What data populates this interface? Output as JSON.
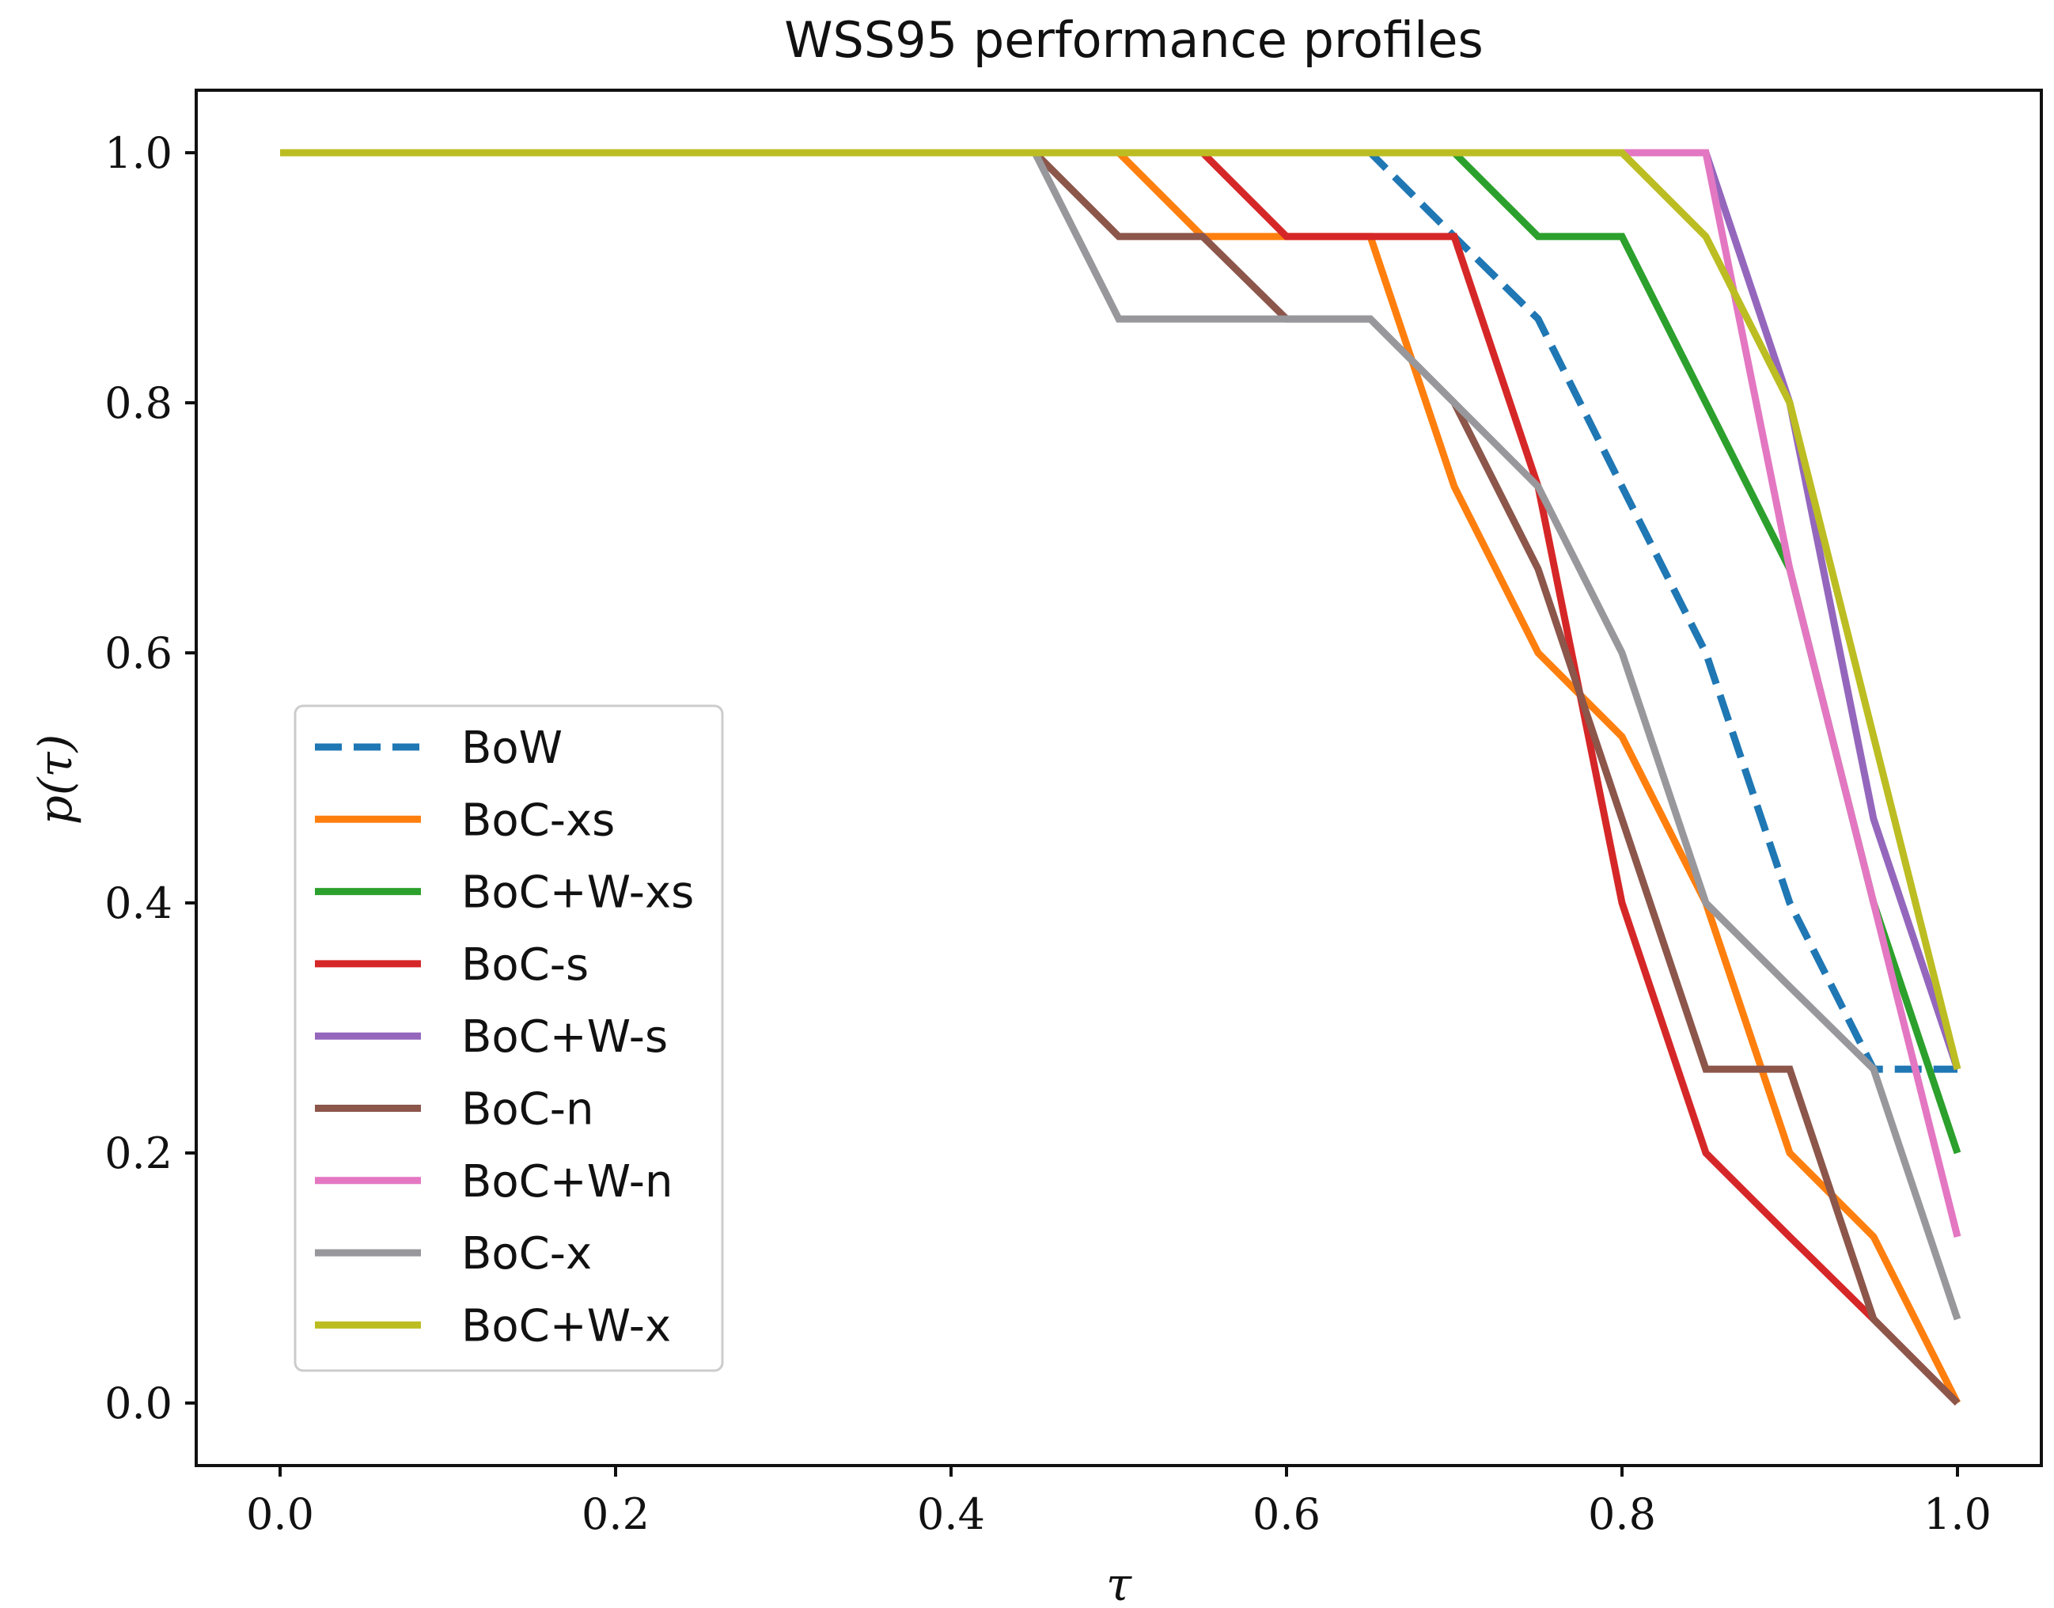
{
  "chart_data": {
    "type": "line",
    "title": "WSS95 performance profiles",
    "xlabel": "τ",
    "ylabel": "p(τ)",
    "xlim": [
      -0.05,
      1.05
    ],
    "ylim": [
      -0.05,
      1.05
    ],
    "xticks": [
      0.0,
      0.2,
      0.4,
      0.6,
      0.8,
      1.0
    ],
    "yticks": [
      0.0,
      0.2,
      0.4,
      0.6,
      0.8,
      1.0
    ],
    "xtick_labels": [
      "0.0",
      "0.2",
      "0.4",
      "0.6",
      "0.8",
      "1.0"
    ],
    "ytick_labels": [
      "0.0",
      "0.2",
      "0.4",
      "0.6",
      "0.8",
      "1.0"
    ],
    "grid": false,
    "legend_position": "center-left",
    "x": [
      0.0,
      0.05,
      0.1,
      0.15,
      0.2,
      0.25,
      0.3,
      0.35,
      0.4,
      0.45,
      0.5,
      0.55,
      0.6,
      0.65,
      0.7,
      0.75,
      0.8,
      0.85,
      0.9,
      0.95,
      1.0
    ],
    "series": [
      {
        "name": "BoW",
        "color": "#1f77b4",
        "dashed": true,
        "values": [
          1,
          1,
          1,
          1,
          1,
          1,
          1,
          1,
          1,
          1,
          1,
          1,
          1,
          1,
          0.933,
          0.867,
          0.733,
          0.6,
          0.4,
          0.267,
          0.267
        ]
      },
      {
        "name": "BoC-xs",
        "color": "#ff7f0e",
        "dashed": false,
        "values": [
          1,
          1,
          1,
          1,
          1,
          1,
          1,
          1,
          1,
          1,
          1,
          0.933,
          0.933,
          0.933,
          0.733,
          0.6,
          0.533,
          0.4,
          0.2,
          0.133,
          0.0
        ]
      },
      {
        "name": "BoC+W-xs",
        "color": "#2ca02c",
        "dashed": false,
        "values": [
          1,
          1,
          1,
          1,
          1,
          1,
          1,
          1,
          1,
          1,
          1,
          1,
          1,
          1,
          1,
          0.933,
          0.933,
          0.8,
          0.667,
          0.4,
          0.2
        ]
      },
      {
        "name": "BoC-s",
        "color": "#d62728",
        "dashed": false,
        "values": [
          1,
          1,
          1,
          1,
          1,
          1,
          1,
          1,
          1,
          1,
          1,
          1,
          0.933,
          0.933,
          0.933,
          0.733,
          0.4,
          0.2,
          0.133,
          0.067,
          0.0
        ]
      },
      {
        "name": "BoC+W-s",
        "color": "#9467bd",
        "dashed": false,
        "values": [
          1,
          1,
          1,
          1,
          1,
          1,
          1,
          1,
          1,
          1,
          1,
          1,
          1,
          1,
          1,
          1,
          1,
          1,
          0.8,
          0.467,
          0.267
        ]
      },
      {
        "name": "BoC-n",
        "color": "#8c564b",
        "dashed": false,
        "values": [
          1,
          1,
          1,
          1,
          1,
          1,
          1,
          1,
          1,
          1,
          0.933,
          0.933,
          0.867,
          0.867,
          0.8,
          0.667,
          0.467,
          0.267,
          0.267,
          0.067,
          0.0
        ]
      },
      {
        "name": "BoC+W-n",
        "color": "#e377c2",
        "dashed": false,
        "values": [
          1,
          1,
          1,
          1,
          1,
          1,
          1,
          1,
          1,
          1,
          1,
          1,
          1,
          1,
          1,
          1,
          1,
          1,
          0.667,
          0.4,
          0.133
        ]
      },
      {
        "name": "BoC-x",
        "color": "#98989c",
        "dashed": false,
        "values": [
          1,
          1,
          1,
          1,
          1,
          1,
          1,
          1,
          1,
          1,
          0.867,
          0.867,
          0.867,
          0.867,
          0.8,
          0.733,
          0.6,
          0.4,
          0.333,
          0.267,
          0.067
        ]
      },
      {
        "name": "BoC+W-x",
        "color": "#bcbd22",
        "dashed": false,
        "values": [
          1,
          1,
          1,
          1,
          1,
          1,
          1,
          1,
          1,
          1,
          1,
          1,
          1,
          1,
          1,
          1,
          1,
          0.933,
          0.8,
          0.533,
          0.267
        ]
      }
    ]
  }
}
